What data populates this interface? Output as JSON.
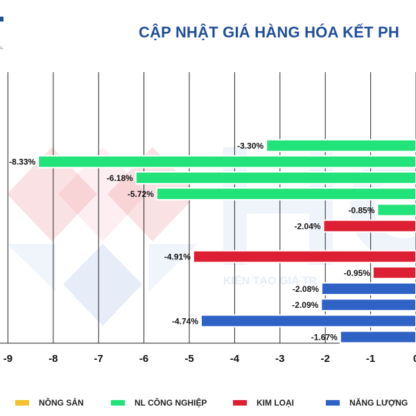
{
  "header": {
    "title": "CẬP NHẬT GIÁ HÀNG HÓA KẾT PH",
    "logo_tag": "G."
  },
  "watermark": {
    "tagline": "KIẾN TẠO GIÁ TR"
  },
  "colors": {
    "nong_san": "#f5c02c",
    "nl_cong_nghiep": "#22e37a",
    "kim_loai": "#dc1f32",
    "nang_luong": "#2f62c5",
    "title": "#1f4e9c"
  },
  "chart_data": {
    "type": "bar",
    "orientation": "horizontal",
    "x_ticks": [
      "-9",
      "-8",
      "-7",
      "-6",
      "-5",
      "-4",
      "-3",
      "-2",
      "-1",
      "0"
    ],
    "xlim": [
      -9,
      0
    ],
    "grid": true,
    "legend_position": "bottom",
    "bars": [
      {
        "group": "nl_cong_nghiep",
        "value": -3.3,
        "label": "-3.30%"
      },
      {
        "group": "nl_cong_nghiep",
        "value": -8.33,
        "label": "-8.33%"
      },
      {
        "group": "nl_cong_nghiep",
        "value": -6.18,
        "label": "-6.18%"
      },
      {
        "group": "nl_cong_nghiep",
        "value": -5.72,
        "label": "-5.72%"
      },
      {
        "group": "nl_cong_nghiep",
        "value": -0.85,
        "label": "-0.85%"
      },
      {
        "group": "kim_loai",
        "value": -2.04,
        "label": "-2.04%"
      },
      {
        "group": "kim_loai",
        "value": -4.91,
        "label": "-4.91%"
      },
      {
        "group": "kim_loai",
        "value": -0.95,
        "label": "-0.95%"
      },
      {
        "group": "nang_luong",
        "value": -2.08,
        "label": "-2.08%"
      },
      {
        "group": "nang_luong",
        "value": -2.09,
        "label": "-2.09%"
      },
      {
        "group": "nang_luong",
        "value": -4.74,
        "label": "-4.74%"
      },
      {
        "group": "nang_luong",
        "value": -1.67,
        "label": "-1.67%"
      }
    ],
    "legend": [
      {
        "group": "nong_san",
        "label": "NÔNG SẢN"
      },
      {
        "group": "nl_cong_nghiep",
        "label": "NL CÔNG NGHIỆP"
      },
      {
        "group": "kim_loai",
        "label": "KIM LOẠI"
      },
      {
        "group": "nang_luong",
        "label": "NĂNG LƯỢNG"
      }
    ]
  }
}
